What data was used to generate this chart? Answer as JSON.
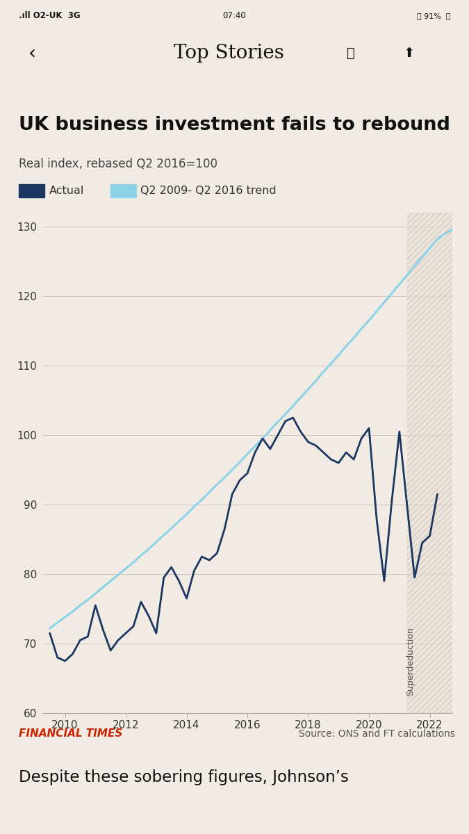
{
  "title": "UK business investment fails to rebound",
  "subtitle": "Real index, rebased Q2 2016=100",
  "background_color": "#f2ebe3",
  "plot_bg_color": "#f2ebe3",
  "actual_color": "#1a3661",
  "trend_color": "#8dd3e8",
  "legend_actual": "Actual",
  "legend_trend": "Q2 2009- Q2 2016 trend",
  "ylim": [
    60,
    132
  ],
  "yticks": [
    60,
    70,
    80,
    90,
    100,
    110,
    120,
    130
  ],
  "xlim": [
    2009.25,
    2022.75
  ],
  "xticks": [
    2010,
    2012,
    2014,
    2016,
    2018,
    2020,
    2022
  ],
  "source_text": "Source: ONS and FT calculations",
  "ft_text": "FINANCIAL TIMES",
  "ft_color": "#cc2200",
  "superdeduction_label": "Superdeduction",
  "superdeduction_start": 2021.25,
  "superdeduction_end": 2022.75,
  "hatch_color": "#c8bfb4",
  "status_bar_text": "O2-UK  3G          07:40          ⏰ 91%",
  "nav_text": "Top Stories",
  "bottom_text": "Despite these sobering figures, Johnson’s",
  "trend_x": [
    2009.5,
    2009.75,
    2010.0,
    2010.25,
    2010.5,
    2010.75,
    2011.0,
    2011.25,
    2011.5,
    2011.75,
    2012.0,
    2012.25,
    2012.5,
    2012.75,
    2013.0,
    2013.25,
    2013.5,
    2013.75,
    2014.0,
    2014.25,
    2014.5,
    2014.75,
    2015.0,
    2015.25,
    2015.5,
    2015.75,
    2016.0,
    2016.25,
    2016.5,
    2016.75,
    2017.0,
    2017.25,
    2017.5,
    2017.75,
    2018.0,
    2018.25,
    2018.5,
    2018.75,
    2019.0,
    2019.25,
    2019.5,
    2019.75,
    2020.0,
    2020.25,
    2020.5,
    2020.75,
    2021.0,
    2021.25,
    2021.5,
    2021.75,
    2022.0,
    2022.25,
    2022.5,
    2022.75
  ],
  "trend_y": [
    72.2,
    73.0,
    73.8,
    74.6,
    75.5,
    76.3,
    77.2,
    78.1,
    79.0,
    79.9,
    80.8,
    81.7,
    82.7,
    83.6,
    84.6,
    85.6,
    86.6,
    87.6,
    88.6,
    89.7,
    90.7,
    91.8,
    92.9,
    93.9,
    95.0,
    96.1,
    97.3,
    98.4,
    99.5,
    100.7,
    101.9,
    103.0,
    104.2,
    105.4,
    106.6,
    107.8,
    109.1,
    110.3,
    111.5,
    112.8,
    114.0,
    115.3,
    116.5,
    117.8,
    119.1,
    120.4,
    121.7,
    123.0,
    124.3,
    125.6,
    126.9,
    128.2,
    129.0,
    129.6
  ],
  "actual_x": [
    2009.5,
    2009.75,
    2010.0,
    2010.25,
    2010.5,
    2010.75,
    2011.0,
    2011.25,
    2011.5,
    2011.75,
    2012.0,
    2012.25,
    2012.5,
    2012.75,
    2013.0,
    2013.25,
    2013.5,
    2013.75,
    2014.0,
    2014.25,
    2014.5,
    2014.75,
    2015.0,
    2015.25,
    2015.5,
    2015.75,
    2016.0,
    2016.25,
    2016.5,
    2016.75,
    2017.0,
    2017.25,
    2017.5,
    2017.75,
    2018.0,
    2018.25,
    2018.5,
    2018.75,
    2019.0,
    2019.25,
    2019.5,
    2019.75,
    2020.0,
    2020.25,
    2020.5,
    2020.75,
    2021.0,
    2021.25,
    2021.5,
    2021.75,
    2022.0,
    2022.25
  ],
  "actual_y": [
    71.5,
    68.0,
    67.5,
    68.5,
    70.5,
    71.0,
    75.5,
    72.0,
    69.0,
    70.5,
    71.5,
    72.5,
    76.0,
    74.0,
    71.5,
    79.5,
    81.0,
    79.0,
    76.5,
    80.5,
    82.5,
    82.0,
    83.0,
    86.5,
    91.5,
    93.5,
    94.5,
    97.5,
    99.5,
    98.0,
    100.0,
    102.0,
    102.5,
    100.5,
    99.0,
    98.5,
    97.5,
    96.5,
    96.0,
    97.5,
    96.5,
    99.5,
    101.0,
    88.0,
    79.0,
    90.5,
    100.5,
    90.0,
    79.5,
    84.5,
    85.5,
    91.5
  ]
}
